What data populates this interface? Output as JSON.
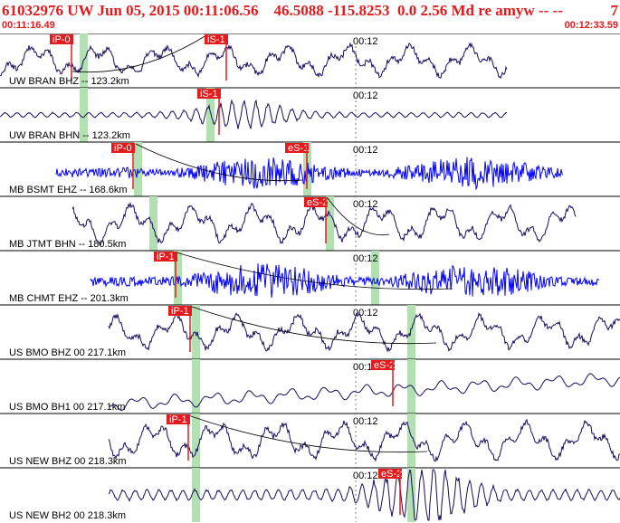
{
  "header": {
    "title": "61032976 UW Jun 05, 2015 00:11:06.56    46.5088 -115.8253  0.0 2.56 Md re amyw -- --",
    "event_count": "7",
    "start_time": "00:11:16.49",
    "end_time": "00:12:33.59",
    "title_color": "#e41a1c"
  },
  "grid_label": "00:12",
  "colors": {
    "trace_dark": "#1a0a5e",
    "trace_blue": "#0000ff",
    "pick_red": "#e41a1c",
    "window_green": "#b3e0b3",
    "arrival_line": "#000000"
  },
  "traces": [
    {
      "label": "UW BRAN BHZ -- 123.2km",
      "color": "dark",
      "style": "wave",
      "picks": [
        {
          "text": "iP-0"
        },
        {
          "text": "iS-1"
        }
      ]
    },
    {
      "label": "UW BRAN BHN -- 123.2km",
      "color": "dark",
      "style": "burst",
      "picks": [
        {
          "text": "iS-1"
        }
      ]
    },
    {
      "label": "MB BSMT EHZ -- 168.6km",
      "color": "blue",
      "style": "noise",
      "picks": [
        {
          "text": "iP-0"
        },
        {
          "text": "eS-1"
        }
      ]
    },
    {
      "label": "MB JTMT BHN -- 180.5km",
      "color": "dark",
      "style": "wave",
      "picks": [
        {
          "text": "eS-2"
        }
      ]
    },
    {
      "label": "MB CHMT EHZ -- 201.3km",
      "color": "blue",
      "style": "noise",
      "picks": [
        {
          "text": "iP-1"
        }
      ]
    },
    {
      "label": "US BMO BHZ 00 217.1km",
      "color": "dark",
      "style": "wave",
      "picks": [
        {
          "text": "iP-1"
        }
      ]
    },
    {
      "label": "US BMO BH1 00 217.1km",
      "color": "dark",
      "style": "drift",
      "picks": [
        {
          "text": "eS-2"
        }
      ]
    },
    {
      "label": "US NEW BHZ 00 218.3km",
      "color": "dark",
      "style": "wave",
      "picks": [
        {
          "text": "iP-1"
        }
      ]
    },
    {
      "label": "US NEW BH2 00 218.3km",
      "color": "dark",
      "style": "burst",
      "picks": [
        {
          "text": "eS-2"
        }
      ]
    }
  ]
}
